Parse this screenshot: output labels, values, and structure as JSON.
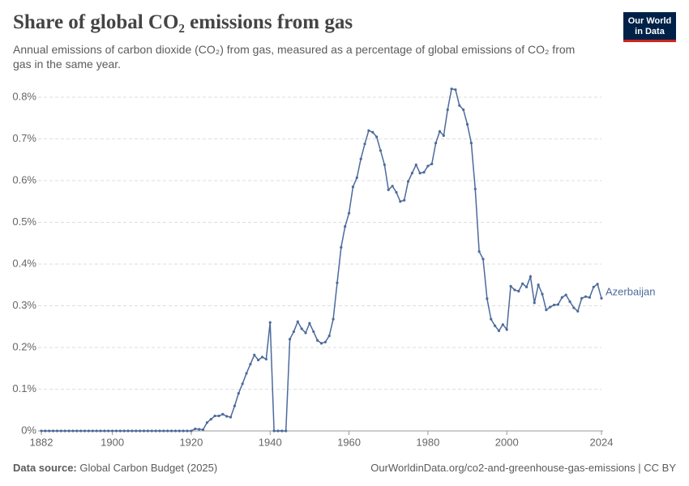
{
  "chart_data": {
    "type": "line",
    "title": "Share of global CO₂ emissions from gas",
    "subtitle": "Annual emissions of carbon dioxide (CO₂) from gas, measured as a percentage of global emissions of CO₂ from gas in the same year.",
    "logo": {
      "line1": "Our World",
      "line2": "in Data"
    },
    "source_label": "Data source:",
    "source": "Global Carbon Budget (2025)",
    "credit": "OurWorldinData.org/co2-and-greenhouse-gas-emissions | CC BY",
    "x": [
      1882,
      1883,
      1884,
      1885,
      1886,
      1887,
      1888,
      1889,
      1890,
      1891,
      1892,
      1893,
      1894,
      1895,
      1896,
      1897,
      1898,
      1899,
      1900,
      1901,
      1902,
      1903,
      1904,
      1905,
      1906,
      1907,
      1908,
      1909,
      1910,
      1911,
      1912,
      1913,
      1914,
      1915,
      1916,
      1917,
      1918,
      1919,
      1920,
      1921,
      1922,
      1923,
      1924,
      1925,
      1926,
      1927,
      1928,
      1929,
      1930,
      1931,
      1932,
      1933,
      1934,
      1935,
      1936,
      1937,
      1938,
      1939,
      1940,
      1941,
      1942,
      1943,
      1944,
      1945,
      1946,
      1947,
      1948,
      1949,
      1950,
      1951,
      1952,
      1953,
      1954,
      1955,
      1956,
      1957,
      1958,
      1959,
      1960,
      1961,
      1962,
      1963,
      1964,
      1965,
      1966,
      1967,
      1968,
      1969,
      1970,
      1971,
      1972,
      1973,
      1974,
      1975,
      1976,
      1977,
      1978,
      1979,
      1980,
      1981,
      1982,
      1983,
      1984,
      1985,
      1986,
      1987,
      1988,
      1989,
      1990,
      1991,
      1992,
      1993,
      1994,
      1995,
      1996,
      1997,
      1998,
      1999,
      2000,
      2001,
      2002,
      2003,
      2004,
      2005,
      2006,
      2007,
      2008,
      2009,
      2010,
      2011,
      2012,
      2013,
      2014,
      2015,
      2016,
      2017,
      2018,
      2019,
      2020,
      2021,
      2022,
      2023,
      2024
    ],
    "series": [
      {
        "name": "Azerbaijan",
        "color": "#4c6a9c",
        "values": [
          0,
          0,
          0,
          0,
          0,
          0,
          0,
          0,
          0,
          0,
          0,
          0,
          0,
          0,
          0,
          0,
          0,
          0,
          0,
          0,
          0,
          0,
          0,
          0,
          0,
          0,
          0,
          0,
          0,
          0,
          0,
          0,
          0,
          0,
          0,
          0,
          0,
          0,
          0,
          0.005,
          0.004,
          0.003,
          0.02,
          0.028,
          0.036,
          0.036,
          0.04,
          0.035,
          0.033,
          0.06,
          0.09,
          0.113,
          0.138,
          0.16,
          0.182,
          0.17,
          0.177,
          0.172,
          0.26,
          0,
          0,
          0,
          0,
          0.22,
          0.238,
          0.262,
          0.245,
          0.235,
          0.258,
          0.238,
          0.217,
          0.21,
          0.213,
          0.228,
          0.268,
          0.355,
          0.44,
          0.49,
          0.522,
          0.585,
          0.607,
          0.652,
          0.688,
          0.72,
          0.716,
          0.705,
          0.672,
          0.638,
          0.578,
          0.587,
          0.572,
          0.55,
          0.553,
          0.598,
          0.618,
          0.638,
          0.618,
          0.62,
          0.635,
          0.64,
          0.69,
          0.718,
          0.708,
          0.77,
          0.82,
          0.818,
          0.78,
          0.77,
          0.735,
          0.69,
          0.58,
          0.43,
          0.412,
          0.317,
          0.268,
          0.252,
          0.24,
          0.255,
          0.243,
          0.347,
          0.338,
          0.335,
          0.353,
          0.345,
          0.37,
          0.307,
          0.35,
          0.328,
          0.29,
          0.297,
          0.302,
          0.303,
          0.32,
          0.326,
          0.31,
          0.295,
          0.287,
          0.318,
          0.322,
          0.32,
          0.345,
          0.352,
          0.318
        ]
      }
    ],
    "xlim": [
      1882,
      2024
    ],
    "xticks": [
      1882,
      1900,
      1920,
      1940,
      1960,
      1980,
      2000,
      2024
    ],
    "ylim": [
      0,
      0.8
    ],
    "yticks": [
      {
        "value": 0,
        "label": "0%"
      },
      {
        "value": 0.1,
        "label": "0.1%"
      },
      {
        "value": 0.2,
        "label": "0.2%"
      },
      {
        "value": 0.3,
        "label": "0.3%"
      },
      {
        "value": 0.4,
        "label": "0.4%"
      },
      {
        "value": 0.5,
        "label": "0.5%"
      },
      {
        "value": 0.6,
        "label": "0.6%"
      },
      {
        "value": 0.7,
        "label": "0.7%"
      },
      {
        "value": 0.8,
        "label": "0.8%"
      }
    ],
    "grid": true
  }
}
